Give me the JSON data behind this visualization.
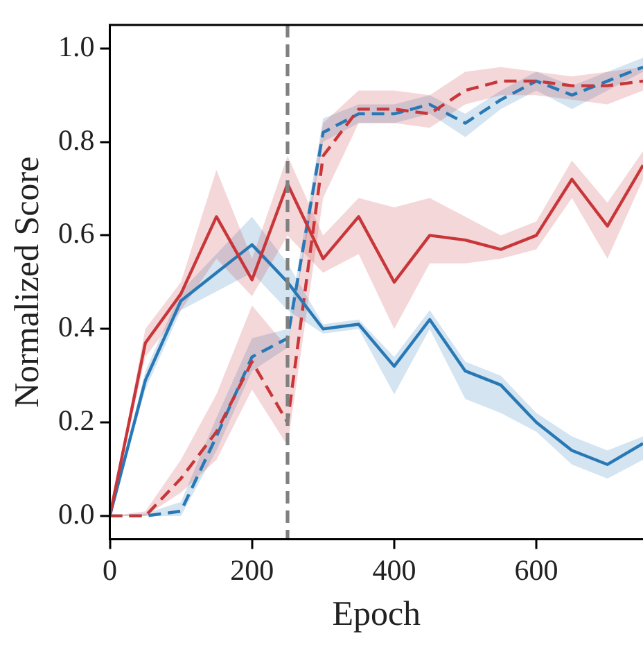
{
  "chart_data": {
    "type": "line",
    "xlabel": "Epoch",
    "ylabel": "Normalized Score",
    "x": [
      0,
      50,
      100,
      150,
      200,
      250,
      300,
      350,
      400,
      450,
      500,
      550,
      600,
      650,
      700,
      750
    ],
    "xlim": [
      0,
      750
    ],
    "xticks": [
      0,
      200,
      400,
      600
    ],
    "ylim": [
      -0.05,
      1.05
    ],
    "yticks": [
      {
        "value": 0,
        "label": "0.0"
      },
      {
        "value": 0.2,
        "label": "0.2"
      },
      {
        "value": 0.4,
        "label": "0.4"
      },
      {
        "value": 0.6,
        "label": "0.6"
      },
      {
        "value": 0.8,
        "label": "0.8"
      },
      {
        "value": 1,
        "label": "1.0"
      }
    ],
    "grid": false,
    "legend": false,
    "marker": "none",
    "ref_lines": [
      {
        "axis": "x",
        "value": 250,
        "color": "#808080",
        "line_style": "dashed"
      }
    ],
    "series": [
      {
        "color": "#c8363a",
        "line_style": "solid",
        "values": [
          0,
          0.37,
          0.475,
          0.64,
          0.505,
          0.71,
          0.55,
          0.64,
          0.5,
          0.6,
          0.59,
          0.57,
          0.6,
          0.72,
          0.62,
          0.75
        ],
        "lower": [
          0,
          0.34,
          0.44,
          0.55,
          0.47,
          0.6,
          0.52,
          0.56,
          0.4,
          0.54,
          0.54,
          0.55,
          0.57,
          0.68,
          0.55,
          0.72
        ],
        "upper": [
          0,
          0.4,
          0.5,
          0.74,
          0.55,
          0.77,
          0.6,
          0.68,
          0.66,
          0.68,
          0.64,
          0.6,
          0.63,
          0.76,
          0.67,
          0.78
        ]
      },
      {
        "color": "#2878b5",
        "line_style": "solid",
        "values": [
          0,
          0.29,
          0.46,
          0.52,
          0.58,
          0.5,
          0.4,
          0.41,
          0.32,
          0.42,
          0.31,
          0.28,
          0.2,
          0.14,
          0.11,
          0.155
        ],
        "lower": [
          0,
          0.27,
          0.44,
          0.48,
          0.52,
          0.44,
          0.39,
          0.4,
          0.26,
          0.4,
          0.25,
          0.22,
          0.18,
          0.11,
          0.08,
          0.12
        ],
        "upper": [
          0,
          0.31,
          0.48,
          0.56,
          0.64,
          0.54,
          0.41,
          0.42,
          0.34,
          0.44,
          0.33,
          0.3,
          0.22,
          0.17,
          0.14,
          0.17
        ]
      },
      {
        "color": "#c8363a",
        "line_style": "dashed",
        "values": [
          0,
          0,
          0.08,
          0.18,
          0.33,
          0.2,
          0.77,
          0.87,
          0.87,
          0.86,
          0.91,
          0.93,
          0.93,
          0.92,
          0.92,
          0.93
        ],
        "lower": [
          0,
          0,
          0.05,
          0.12,
          0.27,
          0.15,
          0.68,
          0.84,
          0.84,
          0.83,
          0.88,
          0.9,
          0.9,
          0.89,
          0.88,
          0.91
        ],
        "upper": [
          0,
          0.01,
          0.12,
          0.26,
          0.45,
          0.36,
          0.84,
          0.91,
          0.91,
          0.9,
          0.95,
          0.96,
          0.95,
          0.94,
          0.95,
          0.96
        ]
      },
      {
        "color": "#2878b5",
        "line_style": "dashed",
        "values": [
          0,
          0,
          0.01,
          0.17,
          0.34,
          0.38,
          0.82,
          0.86,
          0.86,
          0.88,
          0.84,
          0.89,
          0.93,
          0.9,
          0.93,
          0.96
        ],
        "lower": [
          0,
          0,
          0,
          0.14,
          0.31,
          0.36,
          0.8,
          0.84,
          0.84,
          0.86,
          0.81,
          0.87,
          0.91,
          0.87,
          0.91,
          0.95
        ],
        "upper": [
          0,
          0.005,
          0.03,
          0.21,
          0.38,
          0.4,
          0.85,
          0.88,
          0.88,
          0.9,
          0.86,
          0.91,
          0.95,
          0.92,
          0.95,
          0.98
        ]
      }
    ]
  }
}
